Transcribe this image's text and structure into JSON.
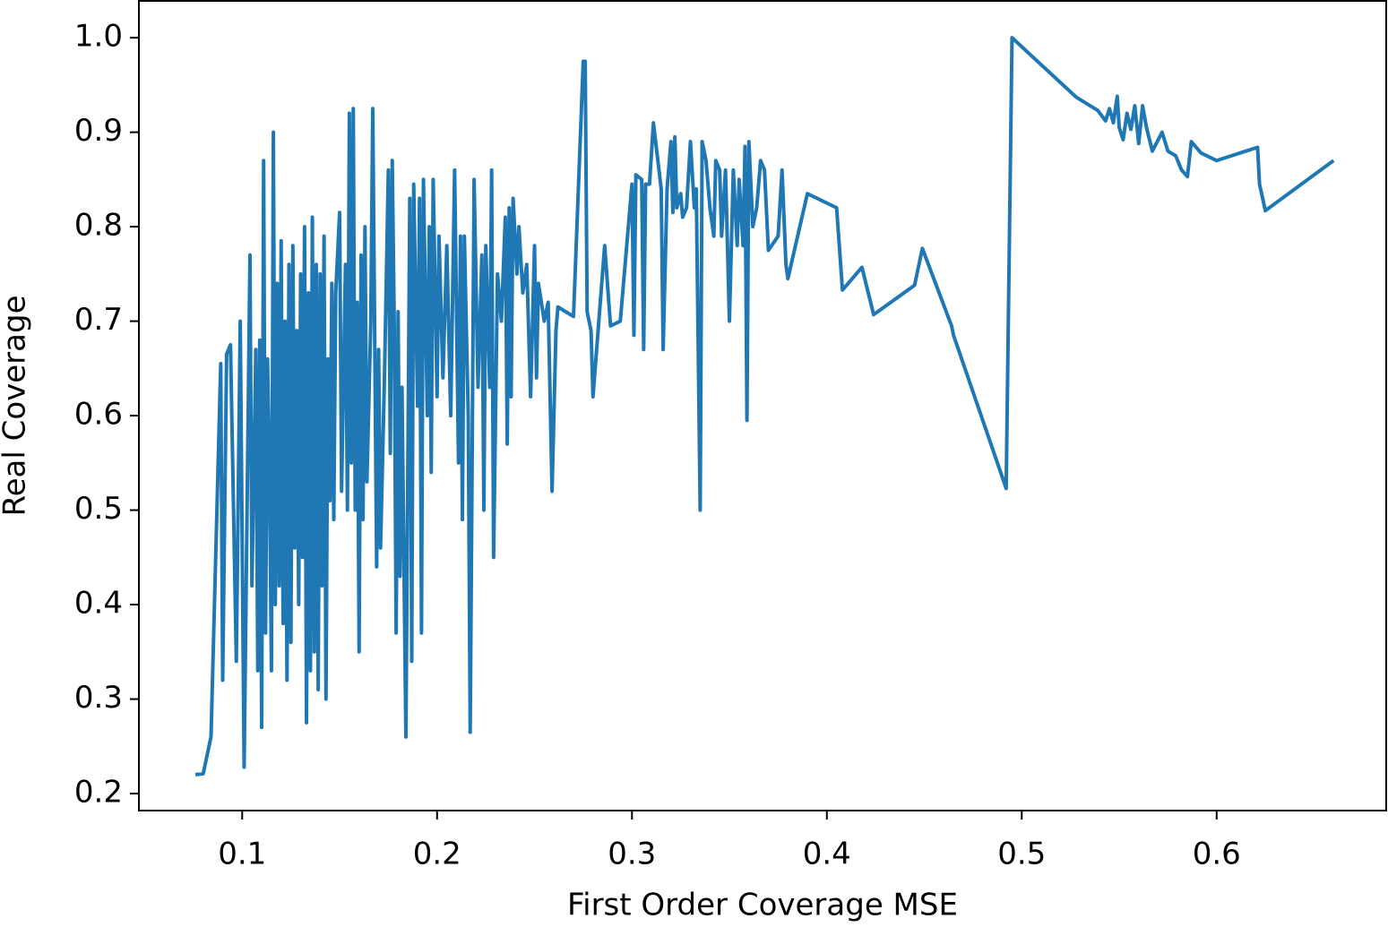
{
  "chart_data": {
    "type": "line",
    "xlabel": "First Order Coverage MSE",
    "ylabel": "Real Coverage",
    "color": "#1f77b4",
    "xlim": [
      0.047,
      0.687
    ],
    "ylim": [
      0.182,
      1.039
    ],
    "xticks": [
      0.1,
      0.2,
      0.3,
      0.4,
      0.5,
      0.6
    ],
    "yticks": [
      0.2,
      0.3,
      0.4,
      0.5,
      0.6,
      0.7,
      0.8,
      0.9,
      {
        "value": 1,
        "label": "1.0"
      }
    ],
    "x": [
      0.076,
      0.08,
      0.084,
      0.089,
      0.09,
      0.092,
      0.094,
      0.097,
      0.099,
      0.101,
      0.104,
      0.105,
      0.107,
      0.108,
      0.109,
      0.11,
      0.111,
      0.112,
      0.113,
      0.114,
      0.115,
      0.116,
      0.117,
      0.118,
      0.119,
      0.12,
      0.121,
      0.122,
      0.123,
      0.124,
      0.125,
      0.126,
      0.127,
      0.128,
      0.129,
      0.13,
      0.131,
      0.132,
      0.133,
      0.134,
      0.135,
      0.136,
      0.137,
      0.138,
      0.139,
      0.14,
      0.141,
      0.142,
      0.143,
      0.144,
      0.145,
      0.146,
      0.147,
      0.148,
      0.15,
      0.151,
      0.153,
      0.154,
      0.155,
      0.156,
      0.157,
      0.158,
      0.159,
      0.16,
      0.161,
      0.162,
      0.163,
      0.164,
      0.166,
      0.167,
      0.169,
      0.17,
      0.171,
      0.173,
      0.175,
      0.176,
      0.177,
      0.178,
      0.179,
      0.18,
      0.181,
      0.182,
      0.184,
      0.186,
      0.187,
      0.188,
      0.19,
      0.191,
      0.192,
      0.193,
      0.195,
      0.196,
      0.197,
      0.198,
      0.2,
      0.201,
      0.203,
      0.205,
      0.207,
      0.209,
      0.211,
      0.212,
      0.213,
      0.214,
      0.216,
      0.217,
      0.219,
      0.221,
      0.223,
      0.224,
      0.225,
      0.227,
      0.228,
      0.229,
      0.231,
      0.233,
      0.235,
      0.236,
      0.237,
      0.238,
      0.239,
      0.241,
      0.242,
      0.244,
      0.246,
      0.248,
      0.25,
      0.251,
      0.252,
      0.255,
      0.257,
      0.259,
      0.261,
      0.262,
      0.27,
      0.275,
      0.276,
      0.277,
      0.279,
      0.28,
      0.286,
      0.289,
      0.294,
      0.3,
      0.301,
      0.302,
      0.305,
      0.306,
      0.307,
      0.309,
      0.311,
      0.315,
      0.316,
      0.318,
      0.32,
      0.321,
      0.322,
      0.323,
      0.325,
      0.326,
      0.328,
      0.33,
      0.332,
      0.333,
      0.335,
      0.336,
      0.338,
      0.34,
      0.342,
      0.343,
      0.345,
      0.346,
      0.348,
      0.35,
      0.352,
      0.354,
      0.355,
      0.357,
      0.358,
      0.359,
      0.36,
      0.362,
      0.364,
      0.366,
      0.368,
      0.37,
      0.375,
      0.377,
      0.379,
      0.38,
      0.39,
      0.405,
      0.408,
      0.418,
      0.424,
      0.445,
      0.449,
      0.464,
      0.465,
      0.492,
      0.495,
      0.528,
      0.539,
      0.543,
      0.545,
      0.547,
      0.549,
      0.55,
      0.552,
      0.554,
      0.556,
      0.558,
      0.56,
      0.562,
      0.564,
      0.567,
      0.572,
      0.575,
      0.579,
      0.582,
      0.585,
      0.587,
      0.592,
      0.6,
      0.621,
      0.622,
      0.625,
      0.66
    ],
    "values": [
      0.22,
      0.221,
      0.26,
      0.655,
      0.32,
      0.665,
      0.675,
      0.34,
      0.7,
      0.228,
      0.77,
      0.42,
      0.67,
      0.33,
      0.68,
      0.27,
      0.87,
      0.37,
      0.66,
      0.55,
      0.33,
      0.9,
      0.4,
      0.74,
      0.42,
      0.785,
      0.38,
      0.7,
      0.32,
      0.76,
      0.36,
      0.78,
      0.46,
      0.69,
      0.4,
      0.75,
      0.45,
      0.8,
      0.275,
      0.73,
      0.33,
      0.81,
      0.35,
      0.76,
      0.31,
      0.75,
      0.42,
      0.79,
      0.3,
      0.66,
      0.51,
      0.74,
      0.49,
      0.73,
      0.815,
      0.52,
      0.76,
      0.5,
      0.92,
      0.55,
      0.925,
      0.5,
      0.72,
      0.35,
      0.77,
      0.49,
      0.8,
      0.53,
      0.7,
      0.925,
      0.44,
      0.67,
      0.46,
      0.64,
      0.86,
      0.56,
      0.87,
      0.7,
      0.37,
      0.71,
      0.43,
      0.63,
      0.26,
      0.83,
      0.34,
      0.845,
      0.61,
      0.83,
      0.37,
      0.85,
      0.6,
      0.8,
      0.54,
      0.85,
      0.62,
      0.79,
      0.64,
      0.78,
      0.6,
      0.86,
      0.55,
      0.79,
      0.49,
      0.79,
      0.6,
      0.265,
      0.85,
      0.63,
      0.77,
      0.5,
      0.78,
      0.63,
      0.86,
      0.45,
      0.75,
      0.7,
      0.81,
      0.57,
      0.82,
      0.62,
      0.83,
      0.75,
      0.8,
      0.73,
      0.76,
      0.62,
      0.78,
      0.64,
      0.74,
      0.7,
      0.72,
      0.52,
      0.69,
      0.715,
      0.705,
      0.975,
      0.975,
      0.71,
      0.69,
      0.62,
      0.78,
      0.695,
      0.7,
      0.845,
      0.685,
      0.855,
      0.85,
      0.67,
      0.845,
      0.845,
      0.91,
      0.84,
      0.67,
      0.84,
      0.89,
      0.815,
      0.895,
      0.82,
      0.835,
      0.81,
      0.82,
      0.89,
      0.82,
      0.84,
      0.5,
      0.89,
      0.87,
      0.82,
      0.79,
      0.87,
      0.86,
      0.79,
      0.86,
      0.7,
      0.86,
      0.78,
      0.85,
      0.78,
      0.885,
      0.595,
      0.89,
      0.8,
      0.82,
      0.87,
      0.86,
      0.775,
      0.79,
      0.86,
      0.76,
      0.745,
      0.835,
      0.82,
      0.733,
      0.757,
      0.707,
      0.738,
      0.777,
      0.695,
      0.685,
      0.523,
      1.0,
      0.937,
      0.923,
      0.912,
      0.925,
      0.91,
      0.938,
      0.905,
      0.892,
      0.92,
      0.903,
      0.928,
      0.888,
      0.928,
      0.905,
      0.88,
      0.9,
      0.88,
      0.875,
      0.86,
      0.853,
      0.89,
      0.878,
      0.87,
      0.884,
      0.845,
      0.817,
      0.87
    ]
  }
}
